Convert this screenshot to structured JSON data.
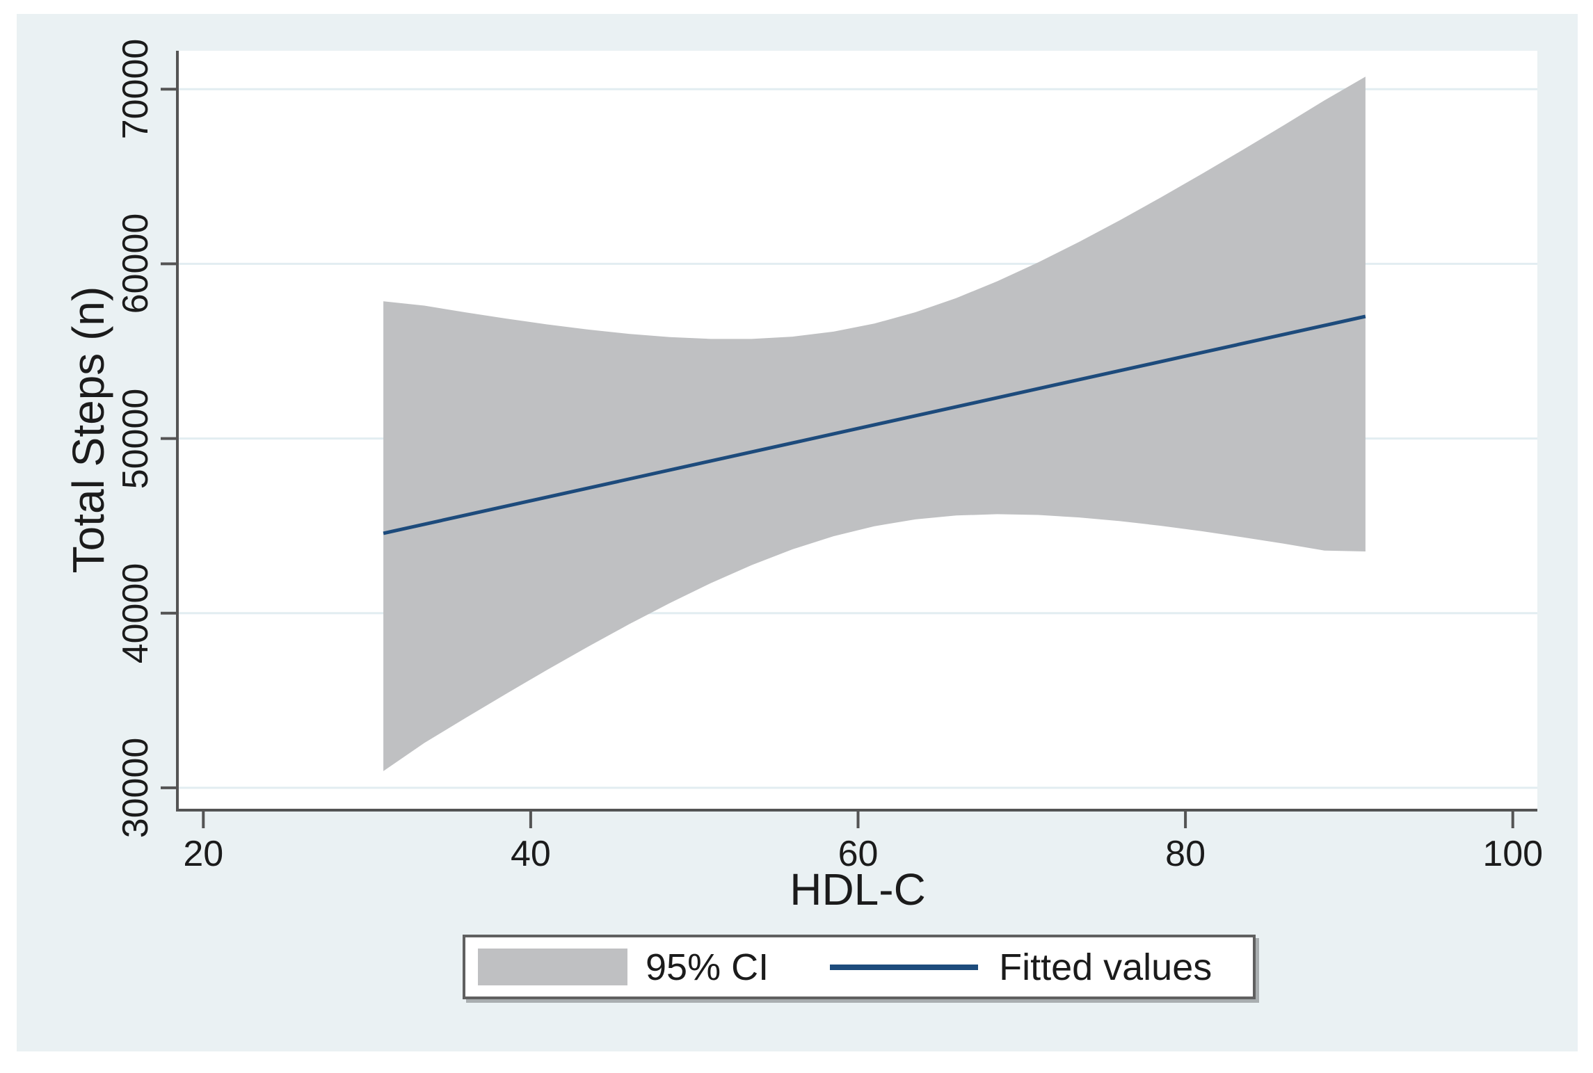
{
  "chart_data": {
    "type": "line",
    "description": "Linear regression fit of Total Steps (n) on HDL-C with 95% confidence band (Stata-style plot)",
    "title": "",
    "xlabel": "HDL-C",
    "ylabel": "Total Steps (n)",
    "x_ticks": [
      20,
      40,
      60,
      80,
      100
    ],
    "y_ticks": [
      30000,
      40000,
      50000,
      60000,
      70000
    ],
    "x_tick_labels": [
      "20",
      "40",
      "60",
      "80",
      "100"
    ],
    "y_tick_labels": [
      "30000",
      "40000",
      "50000",
      "60000",
      "70000"
    ],
    "xlim": [
      18.5,
      101.5
    ],
    "ylim": [
      28800,
      72200
    ],
    "grid": "horizontal",
    "legend_position": "bottom-center",
    "series": [
      {
        "name": "95% CI",
        "type": "ci_band",
        "color": "#bfc0c2",
        "x": [
          31,
          33.5,
          36,
          38.5,
          41,
          43.5,
          46,
          48.5,
          51,
          53.5,
          56,
          58.5,
          61,
          63.5,
          66,
          68.5,
          71,
          73.5,
          76,
          78.5,
          81,
          83.5,
          86,
          88.5,
          91
        ],
        "upper": [
          57860,
          57609,
          57225,
          56865,
          56534,
          56239,
          55991,
          55806,
          55702,
          55701,
          55833,
          56120,
          56581,
          57227,
          58040,
          58999,
          60079,
          61253,
          62500,
          63803,
          65149,
          66528,
          67933,
          69360,
          70715
        ],
        "lower": [
          30955,
          32567,
          33985,
          35381,
          36746,
          38077,
          39359,
          40578,
          41718,
          42753,
          43657,
          44404,
          44979,
          45367,
          45590,
          45665,
          45621,
          45481,
          45270,
          45001,
          44691,
          44346,
          43977,
          43584,
          43532
        ]
      },
      {
        "name": "Fitted values",
        "type": "line",
        "color": "#1d4b7c",
        "x": [
          31,
          91
        ],
        "y": [
          44570,
          56990
        ]
      }
    ],
    "legend": [
      {
        "label": "95% CI"
      },
      {
        "label": "Fitted values"
      }
    ],
    "colors": {
      "canvas_bg": "#eaf1f3",
      "plot_bg": "#ffffff",
      "gridline": "#e2edf1",
      "axis": "#545454",
      "text": "#1b1b1b"
    }
  }
}
